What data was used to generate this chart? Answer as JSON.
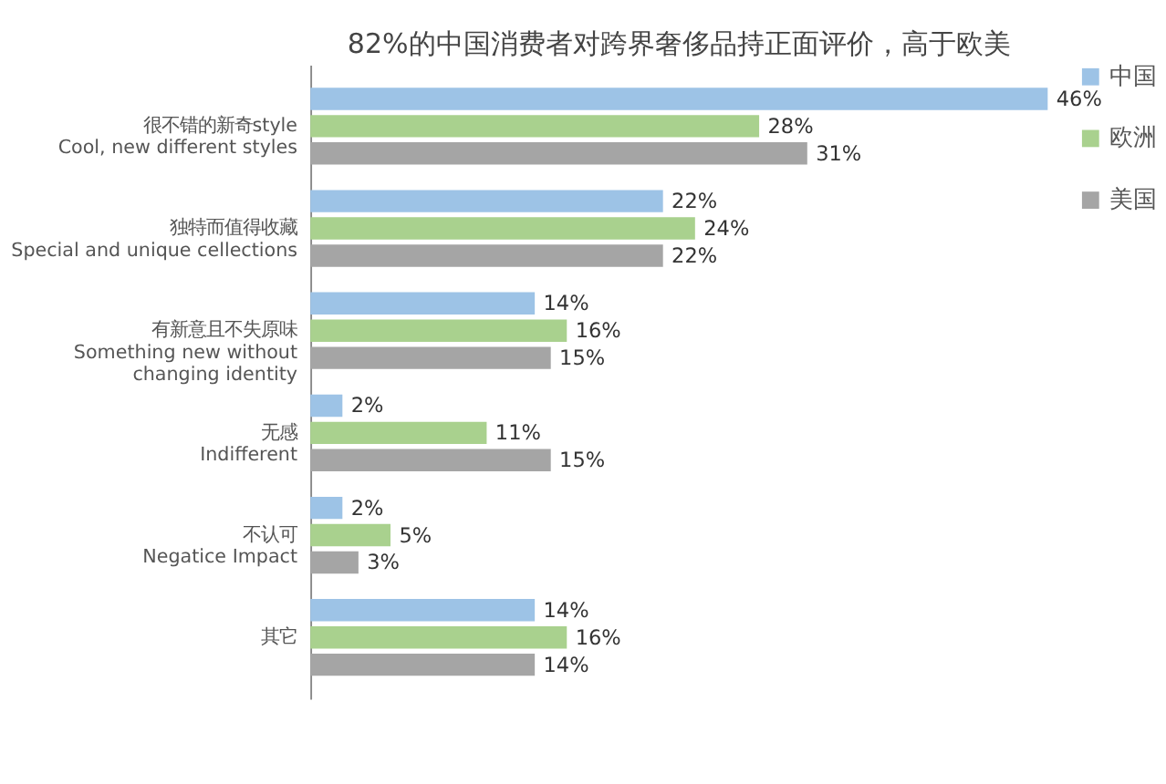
{
  "chart_data": {
    "type": "bar",
    "orientation": "horizontal",
    "title": "82%的中国消费者对跨界奢侈品持正面评价，高于欧美",
    "categories": [
      "很不错的新奇style\nCool, new different styles",
      "独特而值得收藏\nSpecial and unique cellections",
      "有新意且不失原味\nSomething new without\nchanging identity",
      "无感\nIndifferent",
      "不认可\nNegatice Impact",
      "其它"
    ],
    "series": [
      {
        "name": "中国",
        "color": "#9dc3e6",
        "values": [
          46,
          22,
          14,
          2,
          2,
          14
        ],
        "value_labels": [
          "46%",
          "22%",
          "14%",
          "2%",
          "2%",
          "14%"
        ]
      },
      {
        "name": "欧洲",
        "color": "#a9d18e",
        "values": [
          28,
          24,
          16,
          11,
          5,
          16
        ],
        "value_labels": [
          "28%",
          "24%",
          "16%",
          "11%",
          "5%",
          "16%"
        ]
      },
      {
        "name": "美国",
        "color": "#a5a5a5",
        "values": [
          31,
          22,
          15,
          15,
          3,
          14
        ],
        "value_labels": [
          "31%",
          "22%",
          "15%",
          "15%",
          "3%",
          "14%"
        ]
      }
    ],
    "legend": "right",
    "grid": false
  }
}
